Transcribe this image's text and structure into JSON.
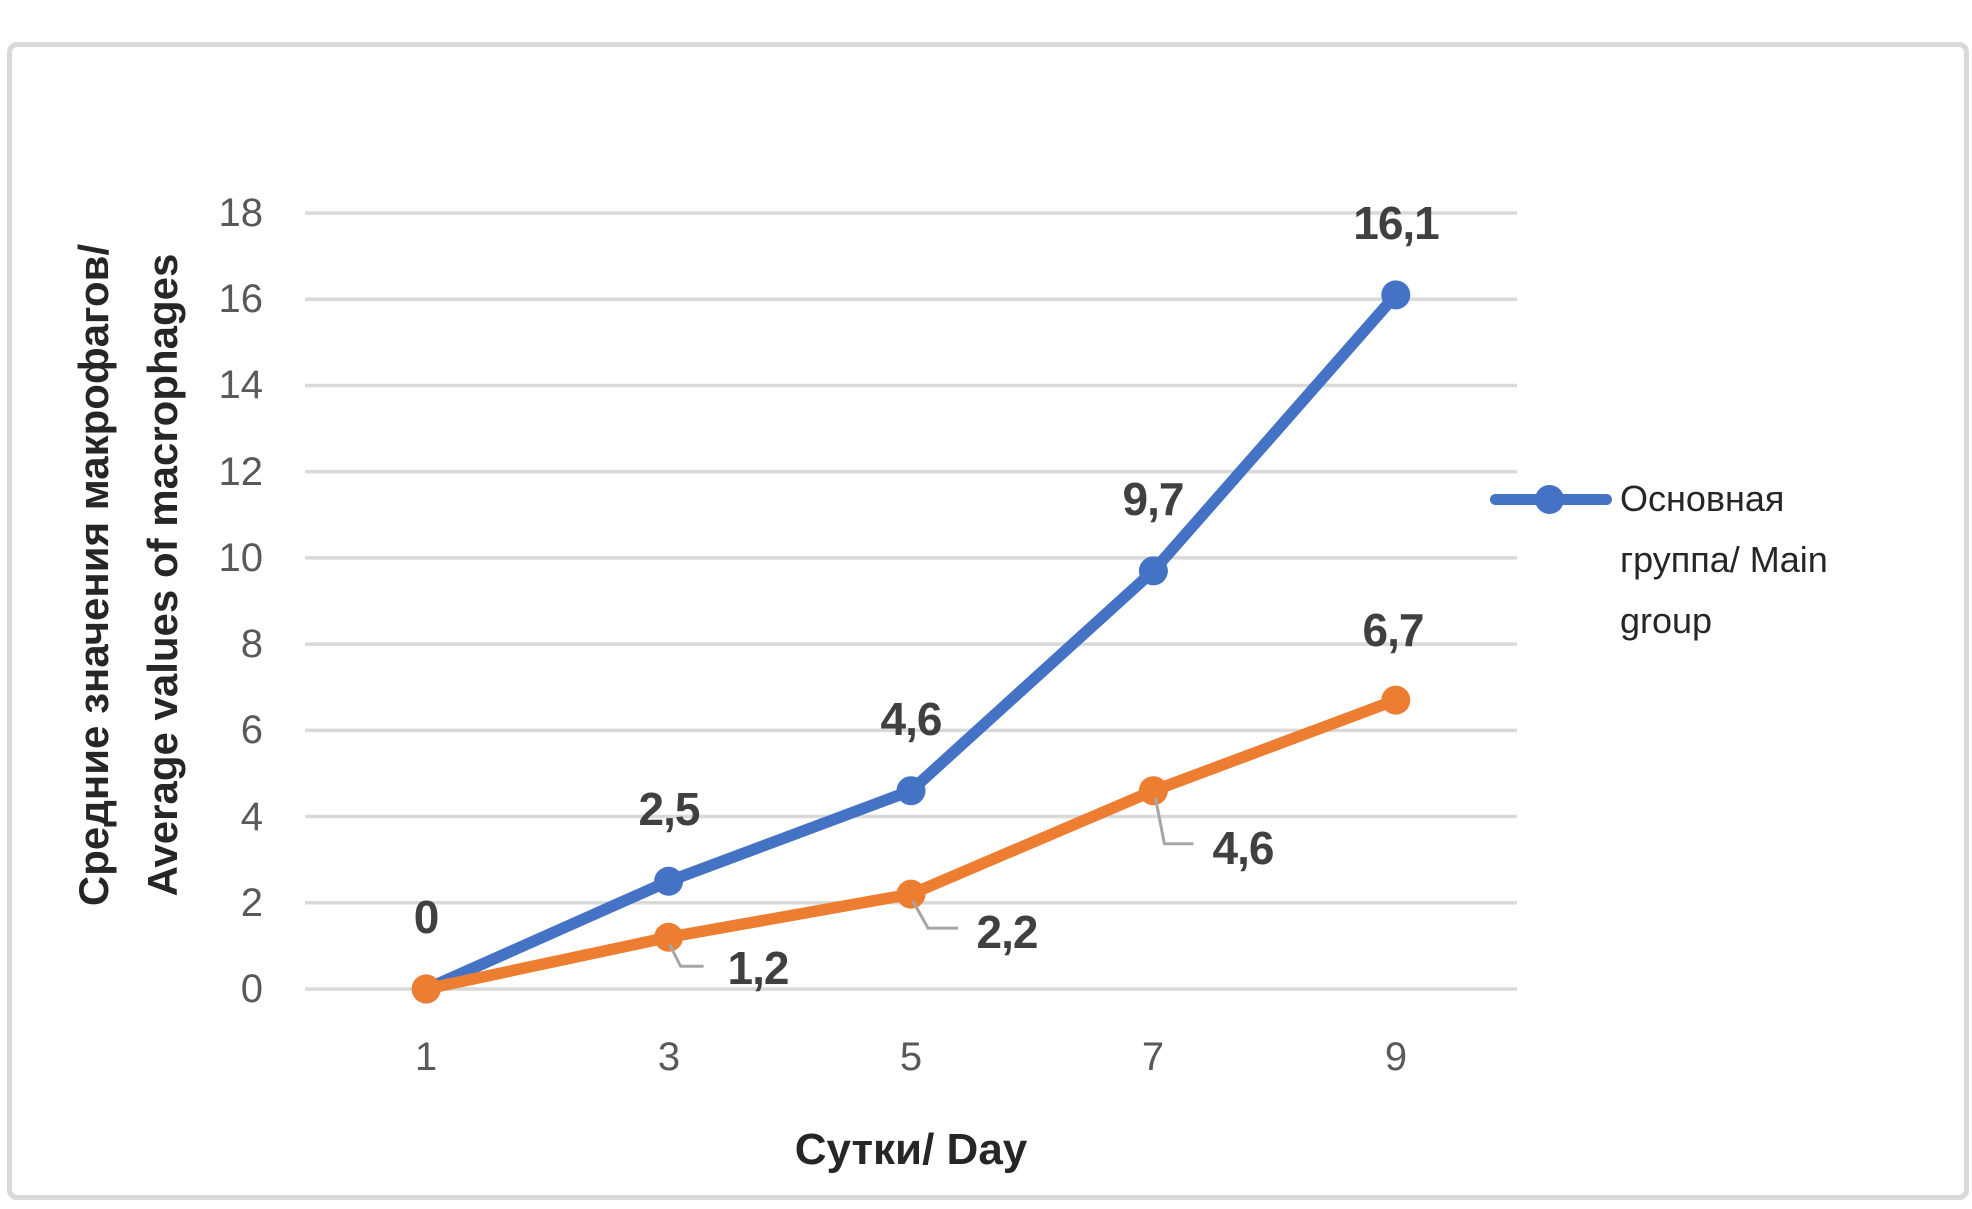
{
  "figure": {
    "background_color": "#ffffff",
    "frame_border_color": "#d9d9d9"
  },
  "chart_data": {
    "type": "line",
    "categories": [
      "1",
      "3",
      "5",
      "7",
      "9"
    ],
    "xlabel": "Сутки/ Day",
    "ylabel": "Средние значения макрофагов/ Average values of macrophages",
    "ylabel_lines": "Средние значения макрофагов/\nAverage values of macrophages",
    "ylim": [
      0,
      18
    ],
    "yticks": [
      0,
      2,
      4,
      6,
      8,
      10,
      12,
      14,
      16,
      18
    ],
    "grid": "horizontal",
    "gridline_color": "#d9d9d9",
    "tick_label_color": "#595959",
    "data_label_color": "#404040",
    "leader_line_color": "#a6a6a6",
    "legend_position": "right",
    "series": [
      {
        "name": "Основная группа/ Main group",
        "color": "#4472C4",
        "values": [
          0,
          2.5,
          4.6,
          9.7,
          16.1
        ],
        "labels": [
          "0",
          "2,5",
          "4,6",
          "9,7",
          "16,1"
        ]
      },
      {
        "name": "",
        "color": "#ED7D31",
        "values": [
          0,
          1.2,
          2.2,
          4.6,
          6.7
        ],
        "labels": [
          "",
          "1,2",
          "2,2",
          "4,6",
          "6,7"
        ]
      }
    ],
    "legend": {
      "entries": [
        {
          "label": "Основная группа/ Main group",
          "label_wrapped": "Основная\nгруппа/ Main\ngroup",
          "color": "#4472C4"
        }
      ]
    }
  }
}
